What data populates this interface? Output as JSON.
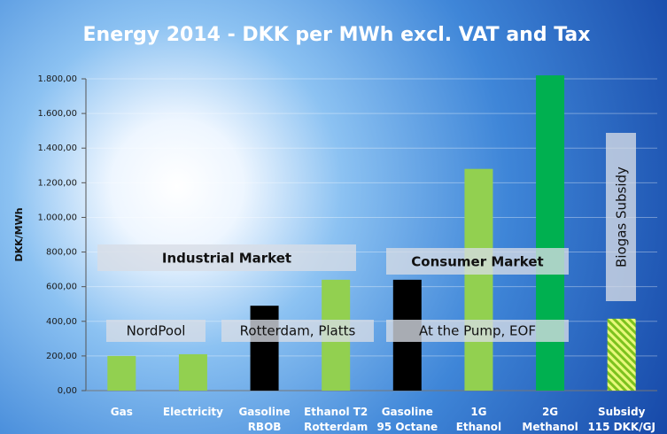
{
  "chart_data": {
    "type": "bar",
    "title": "Energy 2014 - DKK per MWh excl. VAT and Tax",
    "y_label": "DKK/MWh",
    "categories": [
      [
        "Gas"
      ],
      [
        "Electricity"
      ],
      [
        "Gasoline",
        "RBOB"
      ],
      [
        "Ethanol T2",
        "Rotterdam"
      ],
      [
        "Gasoline",
        "95 Octane"
      ],
      [
        "1G",
        "Ethanol"
      ],
      [
        "2G",
        "Methanol"
      ],
      [
        "Subsidy",
        "115 DKK/GJ"
      ]
    ],
    "values": [
      200,
      210,
      490,
      640,
      640,
      1280,
      1820,
      415
    ],
    "colors": [
      "#92d050",
      "#92d050",
      "#000000",
      "#92d050",
      "#000000",
      "#92d050",
      "#00b050",
      "#c8ec3c"
    ],
    "hatch": [
      false,
      false,
      false,
      false,
      false,
      false,
      false,
      true
    ],
    "ylim": [
      0,
      1800
    ],
    "yticks": [
      {
        "value": 0,
        "label": "0,00"
      },
      {
        "value": 200,
        "label": "200,00"
      },
      {
        "value": 400,
        "label": "400,00"
      },
      {
        "value": 600,
        "label": "600,00"
      },
      {
        "value": 800,
        "label": "800,00"
      },
      {
        "value": 1000,
        "label": "1.000,00"
      },
      {
        "value": 1200,
        "label": "1.200,00"
      },
      {
        "value": 1400,
        "label": "1.400,00"
      },
      {
        "value": 1600,
        "label": "1.600,00"
      },
      {
        "value": 1800,
        "label": "1.800,00"
      }
    ],
    "grid": true,
    "annotations": [
      "Industrial Market",
      "Consumer Market",
      "NordPool",
      "Rotterdam, Platts",
      "At the Pump, EOF",
      "Biogas Subsidy"
    ]
  }
}
